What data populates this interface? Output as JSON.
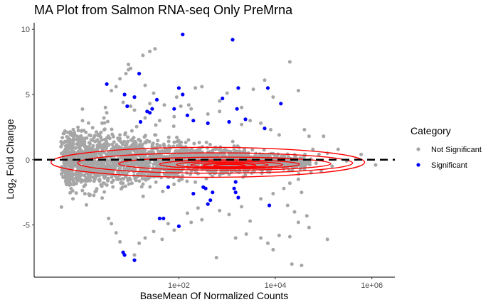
{
  "chart_data": {
    "type": "scatter",
    "title": "MA Plot from Salmon RNA-seq Only PreMrna",
    "xlabel": "BaseMean Of Normalized Counts",
    "ylabel_main": "Log",
    "ylabel_sub": "2",
    "ylabel_rest": " Fold Change",
    "x_scale": "log10",
    "xlim": [
      0.1,
      3000000
    ],
    "ylim": [
      -9,
      10.5
    ],
    "x_ticks": [
      {
        "value": 100,
        "label": "1e+02"
      },
      {
        "value": 10000,
        "label": "1e+04"
      },
      {
        "value": 1000000,
        "label": "1e+06"
      }
    ],
    "y_ticks": [
      {
        "value": 10,
        "label": "10"
      },
      {
        "value": 5,
        "label": "5"
      },
      {
        "value": 0,
        "label": "0"
      },
      {
        "value": -5,
        "label": "-5"
      }
    ],
    "grid": false,
    "reference_line": {
      "y": 0,
      "style": "dashed",
      "color": "#000000"
    },
    "legend": {
      "title": "Category",
      "position": "right",
      "entries": [
        {
          "label": "Not Significant",
          "color": "#a6a6a6"
        },
        {
          "label": "Significant",
          "color": "#0000ff"
        }
      ]
    },
    "series": [
      {
        "name": "Significant",
        "color": "#0000ff",
        "points": [
          [
            3.2,
            5.8
          ],
          [
            7.5,
            5.0
          ],
          [
            8.5,
            4.1
          ],
          [
            15,
            6.6
          ],
          [
            12,
            4.8
          ],
          [
            22,
            3.7
          ],
          [
            28,
            3.9
          ],
          [
            25,
            3.6
          ],
          [
            35,
            4.6
          ],
          [
            16,
            2.9
          ],
          [
            120,
            9.6
          ],
          [
            100,
            5.5
          ],
          [
            120,
            5.0
          ],
          [
            150,
            3.4
          ],
          [
            80,
            3.9
          ],
          [
            200,
            3.0
          ],
          [
            400,
            2.8
          ],
          [
            800,
            4.7
          ],
          [
            1100,
            2.9
          ],
          [
            1300,
            9.2
          ],
          [
            1700,
            5.5
          ],
          [
            1600,
            3.9
          ],
          [
            2400,
            3.1
          ],
          [
            7000,
            5.5
          ],
          [
            6000,
            2.4
          ],
          [
            13000,
            4.3
          ],
          [
            60,
            -2.1
          ],
          [
            200,
            -2.6
          ],
          [
            320,
            -2.1
          ],
          [
            360,
            -2.2
          ],
          [
            450,
            -3.1
          ],
          [
            500,
            -2.5
          ],
          [
            400,
            -3.4
          ],
          [
            1500,
            -1.7
          ],
          [
            1400,
            -2.2
          ],
          [
            1500,
            -2.5
          ],
          [
            1700,
            -2.9
          ],
          [
            40,
            -4.5
          ],
          [
            48,
            -4.5
          ],
          [
            100,
            -5.1
          ],
          [
            7500,
            -3.5
          ],
          [
            7,
            -7.1
          ],
          [
            7.5,
            -7.3
          ],
          [
            12,
            -7.7
          ]
        ]
      },
      {
        "name": "Not Significant",
        "color": "#a6a6a6",
        "points": [
          [
            4,
            5.3
          ],
          [
            5,
            5.6
          ],
          [
            6,
            6.2
          ],
          [
            8,
            6.6
          ],
          [
            9,
            6.9
          ],
          [
            10,
            7.0
          ],
          [
            18,
            8.0
          ],
          [
            25,
            8.3
          ],
          [
            32,
            8.5
          ],
          [
            9,
            7.3
          ],
          [
            20,
            5.7
          ],
          [
            30,
            5.1
          ],
          [
            50,
            4.2
          ],
          [
            90,
            4.8
          ],
          [
            160,
            4.2
          ],
          [
            220,
            5.5
          ],
          [
            300,
            5.6
          ],
          [
            700,
            4.5
          ],
          [
            1000,
            5.1
          ],
          [
            2000,
            4.0
          ],
          [
            3500,
            5.4
          ],
          [
            6000,
            6.1
          ],
          [
            9000,
            4.8
          ],
          [
            20000,
            7.5
          ],
          [
            30000,
            5.3
          ],
          [
            40000,
            2.3
          ],
          [
            50000,
            1.8
          ],
          [
            60000,
            0.8
          ],
          [
            100000,
            1.8
          ],
          [
            80000,
            0.4
          ],
          [
            120000,
            0.5
          ],
          [
            200000,
            0.8
          ],
          [
            300000,
            -0.1
          ],
          [
            600000,
            0.4
          ],
          [
            1200000,
            -0.4
          ],
          [
            150000,
            -0.5
          ],
          [
            90000,
            -0.9
          ],
          [
            55000,
            -1.0
          ],
          [
            40000,
            -0.7
          ],
          [
            30000,
            -1.5
          ],
          [
            20000,
            -1.8
          ],
          [
            35000,
            -2.5
          ],
          [
            18000,
            -3.5
          ],
          [
            25000,
            -4.0
          ],
          [
            30000,
            -4.8
          ],
          [
            45000,
            -4.3
          ],
          [
            50000,
            -5.2
          ],
          [
            120000,
            -6.1
          ],
          [
            20000,
            -5.9
          ],
          [
            12000,
            -5.8
          ],
          [
            9000,
            -6.9
          ],
          [
            7000,
            -6.4
          ],
          [
            5000,
            -6.0
          ],
          [
            3000,
            -4.7
          ],
          [
            2500,
            -5.7
          ],
          [
            1500,
            -6.0
          ],
          [
            600,
            -7.5
          ],
          [
            22000,
            -8.0
          ],
          [
            35000,
            -8.1
          ],
          [
            2000,
            -3.6
          ],
          [
            1100,
            -4.2
          ],
          [
            700,
            -3.9
          ],
          [
            300,
            -4.6
          ],
          [
            180,
            -4.8
          ],
          [
            80,
            -5.4
          ],
          [
            45,
            -6.1
          ],
          [
            15,
            -6.4
          ],
          [
            12,
            -7.3
          ],
          [
            6,
            -6.3
          ],
          [
            5,
            -5.6
          ],
          [
            4,
            -4.9
          ],
          [
            3.5,
            -4.5
          ],
          [
            20,
            -6.0
          ],
          [
            30,
            -5.5
          ],
          [
            60,
            -4.9
          ],
          [
            150,
            -4.1
          ],
          [
            250,
            -3.7
          ],
          [
            5000,
            -3.0
          ],
          [
            9000,
            -2.6
          ],
          [
            15000,
            -2.2
          ],
          [
            12000,
            1.9
          ],
          [
            8000,
            2.3
          ],
          [
            5000,
            2.8
          ],
          [
            3000,
            3.0
          ],
          [
            2000,
            2.7
          ],
          [
            700,
            3.7
          ],
          [
            400,
            3.5
          ],
          [
            180,
            3.9
          ],
          [
            110,
            4.1
          ],
          [
            80,
            3.3
          ],
          [
            40,
            3.0
          ],
          [
            20,
            3.2
          ],
          [
            7,
            4.4
          ],
          [
            3,
            4.0
          ],
          [
            3.2,
            3.6
          ],
          [
            2.8,
            3.2
          ],
          [
            2.6,
            2.8
          ],
          [
            10,
            4.1
          ],
          [
            12,
            3.8
          ],
          [
            25,
            4.3
          ]
        ]
      }
    ],
    "density_contours": {
      "color": "#ff0000",
      "levels": [
        {
          "log_x_center": 2.6,
          "y_center": -0.2,
          "log_x_halfwidth": 3.25,
          "y_halfwidth": 1.15
        },
        {
          "log_x_center": 2.75,
          "y_center": -0.25,
          "log_x_halfwidth": 2.85,
          "y_halfwidth": 0.78
        },
        {
          "log_x_center": 2.95,
          "y_center": -0.3,
          "log_x_halfwidth": 2.2,
          "y_halfwidth": 0.5
        },
        {
          "log_x_center": 3.05,
          "y_center": -0.35,
          "log_x_halfwidth": 1.45,
          "y_halfwidth": 0.34
        },
        {
          "log_x_center": 3.05,
          "y_center": -0.38,
          "log_x_halfwidth": 1.1,
          "y_halfwidth": 0.26
        },
        {
          "log_x_center": 3.05,
          "y_center": -0.4,
          "log_x_halfwidth": 0.8,
          "y_halfwidth": 0.19
        },
        {
          "log_x_center": 3.05,
          "y_center": -0.42,
          "log_x_halfwidth": 0.55,
          "y_halfwidth": 0.13
        },
        {
          "log_x_center": 3.05,
          "y_center": -0.44,
          "log_x_halfwidth": 0.33,
          "y_halfwidth": 0.08
        }
      ]
    }
  }
}
